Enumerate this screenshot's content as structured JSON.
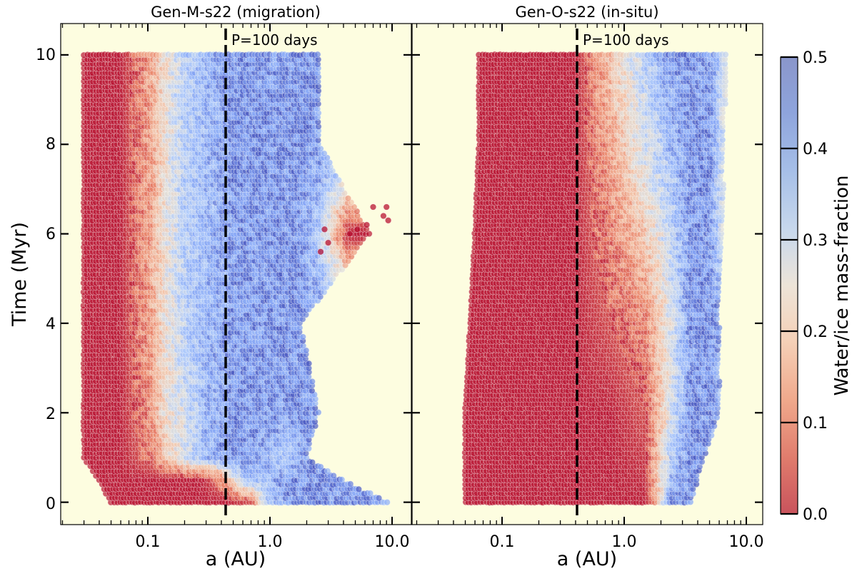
{
  "figure": {
    "ylabel": "Time (Myr)",
    "colorbar_label": "Water/ice mass-fraction",
    "colorbar_ticks": [
      "0.0",
      "0.1",
      "0.2",
      "0.3",
      "0.4",
      "0.5"
    ],
    "colormap": "coolwarm_r",
    "colorbar_range": [
      0.0,
      0.5
    ],
    "plot_background": "#fdfde0",
    "colors": {
      "dry": "#b40426",
      "wet": "#3b4cc0",
      "reference_line": "#000000"
    }
  },
  "chart_data": [
    {
      "type": "scatter",
      "title": "Gen-M-s22 (migration)",
      "xlabel": "a (AU)",
      "ylabel": "Time (Myr)",
      "xscale": "log",
      "xlim": [
        0.02,
        11
      ],
      "ylim": [
        -0.5,
        10.7
      ],
      "x_tick_labels": [
        "0.1",
        "1.0",
        "10.0"
      ],
      "y_tick_labels": [
        "0",
        "2",
        "4",
        "6",
        "8",
        "10"
      ],
      "y_ticks": [
        0,
        2,
        4,
        6,
        8,
        10
      ],
      "grid": false,
      "reference_line": {
        "x": 0.42,
        "label": "P=100 days",
        "style": "dashed"
      },
      "color_variable": "water/ice mass fraction (0.0-0.5)",
      "series": [
        {
          "time": 0.0,
          "a": [
            0.05,
            0.08,
            0.12,
            0.2,
            0.3,
            0.45,
            0.7,
            1.0,
            1.5,
            2.2,
            3.5,
            5.0,
            7.0,
            9.5
          ],
          "water": [
            0,
            0,
            0,
            0,
            0,
            0,
            0.05,
            0.4,
            0.45,
            0.45,
            0.45,
            0.45,
            0.45,
            0.4
          ]
        },
        {
          "time": 0.5,
          "a": [
            0.04,
            0.07,
            0.11,
            0.18,
            0.28,
            0.42,
            0.6,
            0.9,
            1.3,
            1.9,
            2.8,
            4.0
          ],
          "water": [
            0,
            0,
            0,
            0,
            0,
            0.1,
            0.35,
            0.4,
            0.45,
            0.45,
            0.45,
            0.45
          ]
        },
        {
          "time": 1.0,
          "a": [
            0.03,
            0.06,
            0.11,
            0.14,
            0.2,
            0.3,
            0.45,
            0.65,
            1.0,
            1.4,
            2.0
          ],
          "water": [
            0,
            0,
            0.08,
            0.2,
            0.3,
            0.4,
            0.45,
            0.45,
            0.4,
            0.35,
            0.45
          ]
        },
        {
          "time": 2.0,
          "a": [
            0.03,
            0.06,
            0.11,
            0.14,
            0.2,
            0.3,
            0.5,
            0.8,
            1.2,
            1.8,
            2.5
          ],
          "water": [
            0,
            0,
            0.12,
            0.25,
            0.3,
            0.4,
            0.45,
            0.45,
            0.45,
            0.45,
            0.45
          ]
        },
        {
          "time": 4.0,
          "a": [
            0.03,
            0.06,
            0.11,
            0.14,
            0.2,
            0.3,
            0.5,
            0.8,
            1.2,
            1.8
          ],
          "water": [
            0,
            0,
            0.15,
            0.25,
            0.35,
            0.4,
            0.45,
            0.45,
            0.45,
            0.45
          ]
        },
        {
          "time": 6.0,
          "a": [
            0.03,
            0.06,
            0.11,
            0.14,
            0.2,
            0.3,
            0.5,
            0.8,
            1.2,
            1.8,
            2.6,
            4.5,
            6.5
          ],
          "water": [
            0,
            0,
            0.15,
            0.25,
            0.35,
            0.4,
            0.45,
            0.45,
            0.45,
            0.45,
            0.35,
            0,
            0
          ]
        },
        {
          "time": 8.0,
          "a": [
            0.03,
            0.06,
            0.11,
            0.14,
            0.2,
            0.3,
            0.5,
            0.8,
            1.2,
            1.8,
            2.6
          ],
          "water": [
            0,
            0,
            0.15,
            0.25,
            0.35,
            0.4,
            0.45,
            0.45,
            0.45,
            0.45,
            0.45
          ]
        },
        {
          "time": 10.0,
          "a": [
            0.03,
            0.06,
            0.11,
            0.14,
            0.2,
            0.3,
            0.5,
            0.8,
            1.2,
            1.8,
            2.6
          ],
          "water": [
            0,
            0,
            0.15,
            0.25,
            0.35,
            0.4,
            0.45,
            0.45,
            0.45,
            0.45,
            0.45
          ]
        }
      ]
    },
    {
      "type": "scatter",
      "title": "Gen-O-s22 (in-situ)",
      "xlabel": "a (AU)",
      "ylabel": "",
      "xscale": "log",
      "xlim": [
        0.02,
        13
      ],
      "ylim": [
        -0.5,
        10.7
      ],
      "x_tick_labels": [
        "0.1",
        "1.0",
        "10.0"
      ],
      "y_ticks": [
        0,
        2,
        4,
        6,
        8,
        10
      ],
      "grid": false,
      "reference_line": {
        "x": 0.42,
        "label": "P=100 days",
        "style": "dashed"
      },
      "color_variable": "water/ice mass fraction (0.0-0.5)",
      "series": [
        {
          "time": 0.0,
          "a": [
            0.05,
            0.1,
            0.2,
            0.4,
            0.8,
            1.5,
            2.5,
            3.5
          ],
          "water": [
            0,
            0,
            0,
            0,
            0,
            0,
            0.45,
            0.45
          ]
        },
        {
          "time": 2.0,
          "a": [
            0.05,
            0.1,
            0.2,
            0.4,
            0.8,
            1.5,
            2.5,
            3.5,
            5.0,
            6.0
          ],
          "water": [
            0,
            0,
            0,
            0,
            0,
            0.05,
            0.3,
            0.45,
            0.45,
            0.4
          ]
        },
        {
          "time": 4.0,
          "a": [
            0.055,
            0.1,
            0.2,
            0.4,
            0.8,
            1.5,
            2.5,
            3.5,
            5.0,
            6.0
          ],
          "water": [
            0,
            0,
            0,
            0,
            0.05,
            0.1,
            0.3,
            0.45,
            0.45,
            0.45
          ]
        },
        {
          "time": 6.0,
          "a": [
            0.06,
            0.1,
            0.2,
            0.4,
            0.8,
            1.5,
            2.5,
            3.5,
            5.0,
            6.5
          ],
          "water": [
            0,
            0,
            0,
            0,
            0.1,
            0.2,
            0.35,
            0.45,
            0.45,
            0.3
          ]
        },
        {
          "time": 8.0,
          "a": [
            0.065,
            0.1,
            0.2,
            0.4,
            0.8,
            1.5,
            2.5,
            3.5,
            5.0,
            6.5
          ],
          "water": [
            0,
            0,
            0,
            0,
            0.15,
            0.3,
            0.4,
            0.45,
            0.45,
            0.3
          ]
        },
        {
          "time": 10.0,
          "a": [
            0.065,
            0.1,
            0.2,
            0.4,
            0.8,
            1.5,
            2.5,
            3.5,
            5.0,
            7.0
          ],
          "water": [
            0,
            0,
            0,
            0,
            0.2,
            0.35,
            0.45,
            0.45,
            0.45,
            0.3
          ]
        }
      ]
    }
  ]
}
